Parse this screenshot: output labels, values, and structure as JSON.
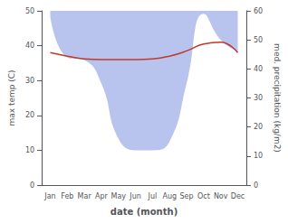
{
  "chart_data": {
    "type": "line",
    "xlabel": "date (month)",
    "ylabel": "max temp (C)",
    "y2label": "med. precipitation (kg/m2)",
    "categories": [
      "Jan",
      "Feb",
      "Mar",
      "Apr",
      "May",
      "Jun",
      "Jul",
      "Aug",
      "Sep",
      "Oct",
      "Nov",
      "Dec"
    ],
    "series": [
      {
        "type": "area",
        "axis": "y2",
        "color": "#b8c4ee",
        "values": [
          58,
          44,
          43,
          35,
          16,
          12,
          12,
          15,
          35,
          59,
          50,
          46
        ]
      },
      {
        "type": "line",
        "color": "#c0392b",
        "values": [
          38.0,
          37.0,
          36.2,
          36.0,
          36.0,
          36.0,
          36.2,
          37.0,
          38.5,
          40.5,
          41.0,
          38.0
        ]
      }
    ],
    "ylim": [
      0,
      50
    ],
    "yticks": [
      0,
      10,
      20,
      30,
      40,
      50
    ],
    "y2lim": [
      0,
      60
    ],
    "y2ticks": [
      0,
      10,
      20,
      30,
      40,
      50,
      60
    ],
    "grid": false
  }
}
